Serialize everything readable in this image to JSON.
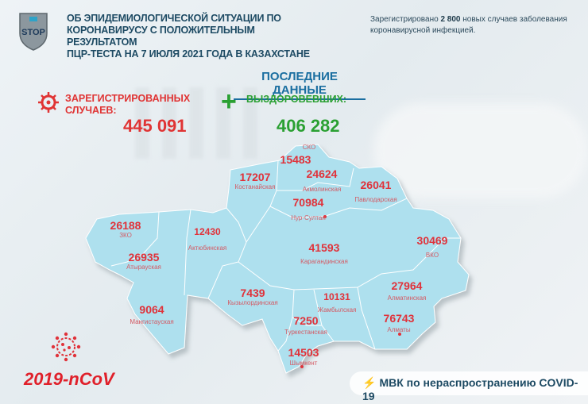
{
  "header": {
    "logo_text": "STOP",
    "title_lines": [
      "ОБ ЭПИДЕМИОЛОГИЧЕСКОЙ СИТУАЦИИ ПО",
      "КОРОНАВИРУСУ С ПОЛОЖИТЕЛЬНЫМ РЕЗУЛЬТАТОМ",
      "ПЦР-ТЕСТА НА 7 ИЮЛЯ 2021 ГОДА В КАЗАХСТАНЕ"
    ],
    "note_prefix": "Зарегистрировано ",
    "note_number": "2 800",
    "note_suffix": " новых случаев заболевания коронавирусной инфекцией."
  },
  "summary": {
    "heading": "ПОСЛЕДНИЕ ДАННЫЕ",
    "registered_label_1": "ЗАРЕГИСТРИРОВАННЫХ",
    "registered_label_2": "СЛУЧАЕВ:",
    "registered_value": "445 091",
    "recovered_label": "ВЫЗДОРОВЕВШИХ:",
    "recovered_value": "406 282",
    "registered_color": "#e03434",
    "recovered_color": "#2aa032"
  },
  "regions": [
    {
      "name": "СКО",
      "value": "15483"
    },
    {
      "name": "Костанайская",
      "value": "17207"
    },
    {
      "name": "Акмолинская",
      "value": "24624"
    },
    {
      "name": "Павлодарская",
      "value": "26041"
    },
    {
      "name": "Нур-Султан",
      "value": "70984"
    },
    {
      "name": "ЗКО",
      "value": "26188"
    },
    {
      "name": "Актюбинская",
      "value": "12430"
    },
    {
      "name": "Карагандинская",
      "value": "41593"
    },
    {
      "name": "ВКО",
      "value": "30469"
    },
    {
      "name": "Атырауская",
      "value": "26935"
    },
    {
      "name": "Кызылординская",
      "value": "7439"
    },
    {
      "name": "Жамбылская",
      "value": "10131"
    },
    {
      "name": "Алматинская",
      "value": "27964"
    },
    {
      "name": "Мангистауская",
      "value": "9064"
    },
    {
      "name": "Туркестанская",
      "value": "7250"
    },
    {
      "name": "Алматы",
      "value": "76743"
    },
    {
      "name": "Шымкент",
      "value": "14503"
    }
  ],
  "map_color": "#aee0ee",
  "badge": {
    "text": "2019-nCoV"
  },
  "footer": {
    "text": "МВК по нераспространению COVID-19"
  }
}
